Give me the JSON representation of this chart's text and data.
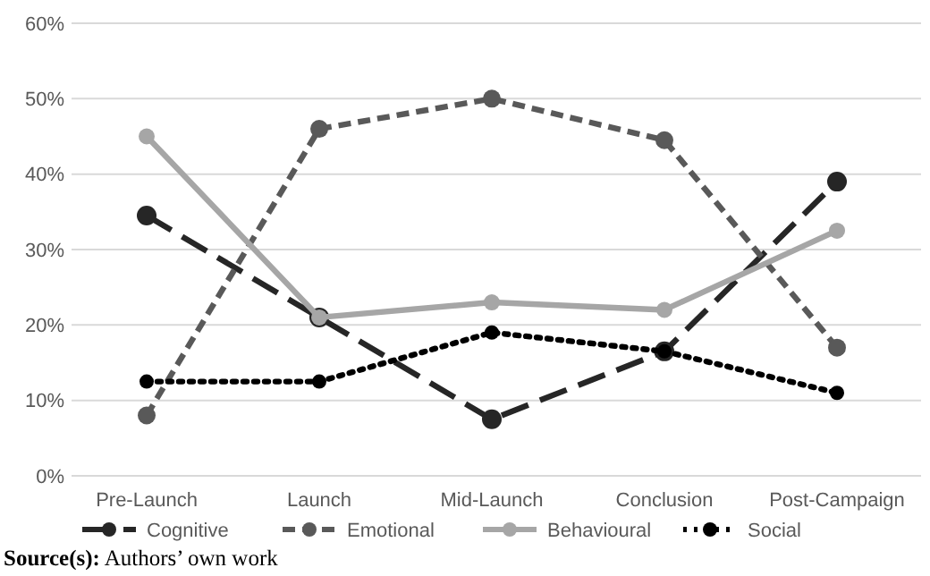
{
  "chart_data": {
    "type": "line",
    "categories": [
      "Pre-Launch",
      "Launch",
      "Mid-Launch",
      "Conclusion",
      "Post-Campaign"
    ],
    "series": [
      {
        "name": "Cognitive",
        "color": "#262626",
        "line_style": "longdash",
        "values": [
          34.5,
          21,
          7.5,
          16.5,
          39
        ]
      },
      {
        "name": "Emotional",
        "color": "#595959",
        "line_style": "dashed",
        "values": [
          8,
          46,
          50,
          44.5,
          17
        ]
      },
      {
        "name": "Behavioural",
        "color": "#a6a6a6",
        "line_style": "solid",
        "values": [
          45,
          21,
          23,
          22,
          32.5
        ]
      },
      {
        "name": "Social",
        "color": "#000000",
        "line_style": "dotted",
        "values": [
          12.5,
          12.5,
          19,
          16.5,
          11
        ]
      }
    ],
    "ylim": [
      0,
      60
    ],
    "yticks": [
      {
        "value": 0,
        "label": "0%"
      },
      {
        "value": 10,
        "label": "10%"
      },
      {
        "value": 20,
        "label": "20%"
      },
      {
        "value": 30,
        "label": "30%"
      },
      {
        "value": 40,
        "label": "40%"
      },
      {
        "value": 50,
        "label": "50%"
      },
      {
        "value": 60,
        "label": "60%"
      }
    ],
    "grid": "y",
    "legend": "bottom",
    "marker": "circle",
    "annotations": [
      "Source(s): Authors’ own work"
    ]
  }
}
